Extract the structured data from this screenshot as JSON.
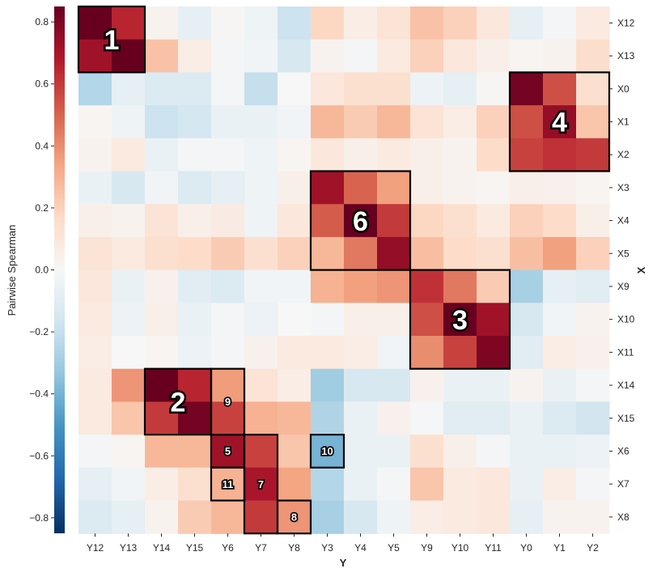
{
  "chart_data": {
    "type": "heatmap",
    "xlabel": "Y",
    "ylabel": "X",
    "colorbar_label": "Pairwise Spearman",
    "colormap": "RdBu_r",
    "colorbar_range": [
      -0.85,
      0.85
    ],
    "colorbar_ticks": [
      0.8,
      0.6,
      0.4,
      0.2,
      0.0,
      -0.2,
      -0.4,
      -0.6,
      -0.8
    ],
    "colorbar_tick_labels": [
      "0.8",
      "0.6",
      "0.4",
      "0.2",
      "0.0",
      "−0.2",
      "−0.4",
      "−0.6",
      "−0.8"
    ],
    "x_categories": [
      "Y12",
      "Y13",
      "Y14",
      "Y15",
      "Y6",
      "Y7",
      "Y8",
      "Y3",
      "Y4",
      "Y5",
      "Y9",
      "Y10",
      "Y11",
      "Y0",
      "Y1",
      "Y2"
    ],
    "y_categories": [
      "X12",
      "X13",
      "X0",
      "X1",
      "X2",
      "X3",
      "X4",
      "X5",
      "X9",
      "X10",
      "X11",
      "X14",
      "X15",
      "X6",
      "X7",
      "X8"
    ],
    "values": [
      [
        0.85,
        0.65,
        0.03,
        -0.08,
        0.01,
        -0.04,
        -0.18,
        0.18,
        0.06,
        0.12,
        0.25,
        0.2,
        0.1,
        -0.08,
        -0.02,
        0.08
      ],
      [
        0.72,
        0.85,
        0.25,
        0.06,
        -0.02,
        -0.03,
        -0.14,
        0.03,
        -0.02,
        0.08,
        0.2,
        0.1,
        0.05,
        0.02,
        0.03,
        0.15
      ],
      [
        -0.25,
        -0.08,
        -0.12,
        -0.12,
        -0.02,
        -0.2,
        0.0,
        0.1,
        0.14,
        0.14,
        -0.05,
        -0.08,
        0.01,
        0.82,
        0.55,
        0.14
      ],
      [
        0.02,
        -0.04,
        -0.18,
        -0.15,
        -0.06,
        -0.06,
        -0.03,
        0.28,
        0.22,
        0.28,
        0.12,
        0.06,
        0.2,
        0.55,
        0.75,
        0.24
      ],
      [
        0.03,
        0.08,
        -0.06,
        -0.02,
        -0.02,
        -0.04,
        0.02,
        0.1,
        0.05,
        0.08,
        0.05,
        0.03,
        0.16,
        0.58,
        0.62,
        0.6
      ],
      [
        -0.06,
        -0.14,
        -0.03,
        -0.12,
        -0.08,
        -0.04,
        0.05,
        0.72,
        0.5,
        0.35,
        0.05,
        0.03,
        0.02,
        0.05,
        0.04,
        0.02
      ],
      [
        0.05,
        0.03,
        0.12,
        0.05,
        0.07,
        -0.04,
        0.1,
        0.52,
        0.85,
        0.6,
        0.18,
        0.14,
        0.08,
        0.2,
        0.16,
        0.05
      ],
      [
        0.12,
        0.08,
        0.14,
        0.16,
        0.22,
        0.14,
        0.2,
        0.28,
        0.45,
        0.75,
        0.26,
        0.16,
        0.14,
        0.26,
        0.35,
        0.2
      ],
      [
        0.1,
        -0.06,
        0.04,
        -0.1,
        -0.12,
        -0.03,
        -0.03,
        0.3,
        0.35,
        0.38,
        0.62,
        0.45,
        0.22,
        -0.28,
        -0.08,
        -0.1
      ],
      [
        0.08,
        -0.05,
        0.05,
        -0.06,
        -0.02,
        -0.05,
        0.0,
        -0.02,
        0.05,
        0.05,
        0.55,
        0.85,
        0.72,
        -0.14,
        -0.03,
        0.03
      ],
      [
        0.06,
        0.0,
        0.02,
        -0.05,
        -0.02,
        0.04,
        0.08,
        0.08,
        0.06,
        -0.03,
        0.4,
        0.58,
        0.8,
        -0.1,
        0.06,
        0.04
      ],
      [
        0.08,
        0.38,
        0.85,
        0.65,
        0.36,
        0.12,
        0.06,
        -0.3,
        -0.14,
        -0.14,
        0.04,
        -0.06,
        -0.06,
        0.03,
        -0.06,
        -0.02
      ],
      [
        0.08,
        0.24,
        0.6,
        0.82,
        0.58,
        0.3,
        0.28,
        -0.26,
        -0.06,
        0.04,
        -0.01,
        -0.1,
        -0.1,
        -0.06,
        -0.12,
        -0.16
      ],
      [
        -0.02,
        0.02,
        0.28,
        0.28,
        0.72,
        0.58,
        0.24,
        -0.4,
        -0.06,
        -0.06,
        0.14,
        0.05,
        -0.02,
        -0.06,
        -0.06,
        -0.05
      ],
      [
        -0.08,
        -0.03,
        0.06,
        0.14,
        0.3,
        0.7,
        0.34,
        -0.25,
        -0.06,
        -0.02,
        0.24,
        0.08,
        0.1,
        -0.06,
        0.06,
        -0.02
      ],
      [
        -0.12,
        -0.08,
        0.03,
        0.22,
        0.28,
        0.6,
        0.38,
        -0.28,
        -0.14,
        -0.04,
        0.06,
        0.08,
        0.1,
        -0.08,
        0.03,
        0.03
      ]
    ],
    "blocks": [
      {
        "label": "1",
        "row_start": 0,
        "row_end": 1,
        "col_start": 0,
        "col_end": 1,
        "size": "large"
      },
      {
        "label": "4",
        "row_start": 2,
        "row_end": 4,
        "col_start": 13,
        "col_end": 15,
        "size": "large"
      },
      {
        "label": "6",
        "row_start": 5,
        "row_end": 7,
        "col_start": 7,
        "col_end": 9,
        "size": "large"
      },
      {
        "label": "3",
        "row_start": 8,
        "row_end": 10,
        "col_start": 10,
        "col_end": 12,
        "size": "large"
      },
      {
        "label": "2",
        "row_start": 11,
        "row_end": 12,
        "col_start": 2,
        "col_end": 3,
        "size": "large"
      },
      {
        "label": "9",
        "row_start": 11,
        "row_end": 12,
        "col_start": 4,
        "col_end": 4,
        "size": "small"
      },
      {
        "label": "5",
        "row_start": 13,
        "row_end": 13,
        "col_start": 4,
        "col_end": 4,
        "size": "small"
      },
      {
        "label": "11",
        "row_start": 14,
        "row_end": 14,
        "col_start": 4,
        "col_end": 4,
        "size": "small"
      },
      {
        "label": "7",
        "row_start": 13,
        "row_end": 15,
        "col_start": 5,
        "col_end": 5,
        "size": "small"
      },
      {
        "label": "8",
        "row_start": 15,
        "row_end": 15,
        "col_start": 6,
        "col_end": 6,
        "size": "small"
      },
      {
        "label": "10",
        "row_start": 13,
        "row_end": 13,
        "col_start": 7,
        "col_end": 7,
        "size": "small"
      }
    ]
  }
}
